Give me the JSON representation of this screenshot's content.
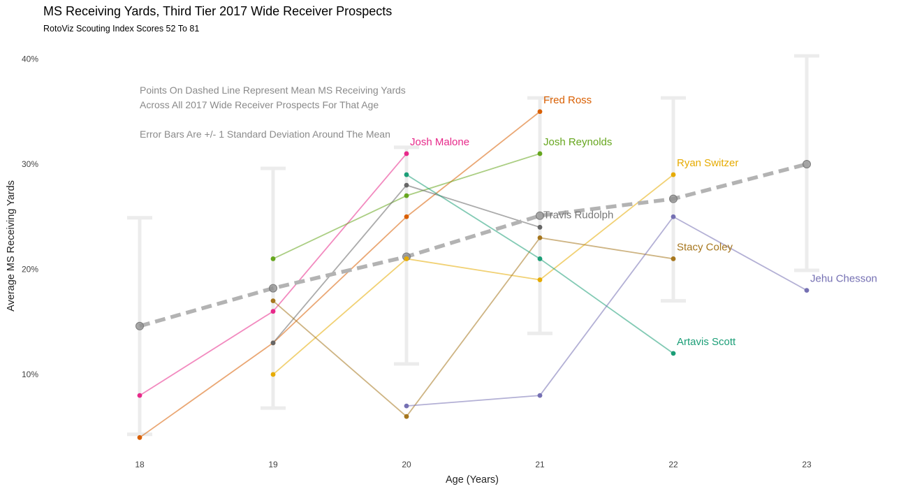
{
  "chart_data": {
    "type": "line",
    "title": "MS Receiving Yards, Third Tier 2017 Wide Receiver Prospects",
    "subtitle": "RotoViz Scouting Index Scores 52 To 81",
    "xlabel": "Age (Years)",
    "ylabel": "Average MS Receiving Yards",
    "xlim": [
      18,
      23
    ],
    "ylim": [
      0.03,
      0.42
    ],
    "x_ticks": [
      18,
      19,
      20,
      21,
      22,
      23
    ],
    "x_tick_labels": [
      "18",
      "19",
      "20",
      "21",
      "22",
      "23"
    ],
    "y_ticks": [
      0.1,
      0.2,
      0.3,
      0.4
    ],
    "y_tick_labels": [
      "10%",
      "20%",
      "30%",
      "40%"
    ],
    "grid": false,
    "annotations": [
      "Points On Dashed Line Represent Mean MS Receiving Yards",
      "Across All 2017 Wide Receiver Prospects For That Age",
      "Error Bars Are +/- 1 Standard Deviation Around The Mean"
    ],
    "mean": {
      "x": [
        18,
        19,
        20,
        21,
        22,
        23
      ],
      "values": [
        0.146,
        0.182,
        0.212,
        0.251,
        0.267,
        0.3
      ],
      "color": "#b3b3b3"
    },
    "error_bars": [
      {
        "x": 18,
        "low": 0.043,
        "high": 0.249
      },
      {
        "x": 19,
        "low": 0.068,
        "high": 0.296
      },
      {
        "x": 20,
        "low": 0.11,
        "high": 0.316
      },
      {
        "x": 21,
        "low": 0.139,
        "high": 0.363
      },
      {
        "x": 22,
        "low": 0.17,
        "high": 0.363
      },
      {
        "x": 23,
        "low": 0.199,
        "high": 0.403
      }
    ],
    "series": [
      {
        "name": "Josh Malone",
        "color": "#e7298a",
        "x": [
          18,
          19,
          20
        ],
        "values": [
          0.08,
          0.16,
          0.31
        ]
      },
      {
        "name": "Fred Ross",
        "color": "#d95f02",
        "x": [
          18,
          19,
          20,
          21
        ],
        "values": [
          0.04,
          0.13,
          0.25,
          0.35
        ]
      },
      {
        "name": "Josh Reynolds",
        "color": "#66a61e",
        "x": [
          19,
          20,
          21
        ],
        "values": [
          0.21,
          0.27,
          0.31
        ]
      },
      {
        "name": "Ryan Switzer",
        "color": "#e6ab02",
        "x": [
          19,
          20,
          21,
          22
        ],
        "values": [
          0.1,
          0.21,
          0.19,
          0.29
        ]
      },
      {
        "name": "Travis Rudolph",
        "color": "#666666",
        "x": [
          19,
          20,
          21
        ],
        "values": [
          0.13,
          0.28,
          0.24
        ]
      },
      {
        "name": "Stacy Coley",
        "color": "#a6761d",
        "x": [
          19,
          20,
          21,
          22
        ],
        "values": [
          0.17,
          0.06,
          0.23,
          0.21
        ]
      },
      {
        "name": "Artavis Scott",
        "color": "#1b9e77",
        "x": [
          20,
          21,
          22
        ],
        "values": [
          0.29,
          0.21,
          0.12
        ]
      },
      {
        "name": "Jehu Chesson",
        "color": "#7570b3",
        "x": [
          20,
          21,
          22,
          23
        ],
        "values": [
          0.07,
          0.08,
          0.25,
          0.18
        ]
      }
    ]
  }
}
